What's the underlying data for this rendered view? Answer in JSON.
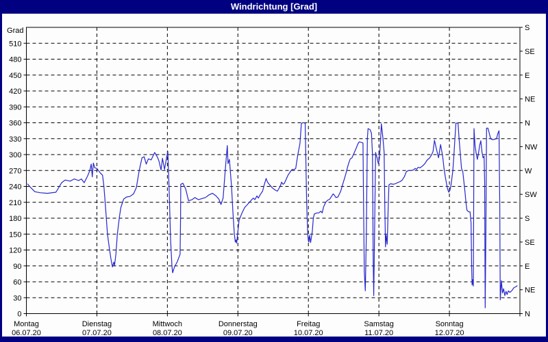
{
  "window": {
    "title": "Windrichtung [Grad]"
  },
  "colors": {
    "chrome": "#000080",
    "title_text": "#ffffff",
    "plot_background": "#fdfdfd",
    "grid": "#000000",
    "axis": "#000000",
    "line": "#2626cc",
    "text": "#000000"
  },
  "chart_data": {
    "type": "line",
    "title": "Windrichtung [Grad]",
    "ylabel": "Grad",
    "ylim": [
      0,
      540
    ],
    "y_tick_step": 30,
    "grid": "dashed-horizontal-every-30deg-and-vertical-every-day",
    "legend": "none",
    "right_axis": {
      "step": 45,
      "labels_bottom_to_top": [
        "N",
        "NE",
        "E",
        "SE",
        "S",
        "SW",
        "W",
        "NW",
        "N",
        "NE",
        "E",
        "SE",
        "S"
      ]
    },
    "x_days": [
      {
        "day": "Montag",
        "date": "06.07.20"
      },
      {
        "day": "Dienstag",
        "date": "07.07.20"
      },
      {
        "day": "Mittwoch",
        "date": "08.07.20"
      },
      {
        "day": "Donnerstag",
        "date": "09.07.20"
      },
      {
        "day": "Freitag",
        "date": "10.07.20"
      },
      {
        "day": "Samstag",
        "date": "11.07.20"
      },
      {
        "day": "Sonntag",
        "date": "12.07.20"
      }
    ],
    "series": [
      {
        "name": "Windrichtung",
        "unit": "Grad",
        "x_unit": "days-since-monday-00h",
        "points": [
          [
            0.015,
            245
          ],
          [
            0.06,
            238
          ],
          [
            0.12,
            230
          ],
          [
            0.2,
            228
          ],
          [
            0.3,
            227
          ],
          [
            0.42,
            229
          ],
          [
            0.5,
            247
          ],
          [
            0.55,
            252
          ],
          [
            0.62,
            250
          ],
          [
            0.68,
            254
          ],
          [
            0.74,
            251
          ],
          [
            0.78,
            254
          ],
          [
            0.82,
            247
          ],
          [
            0.87,
            260
          ],
          [
            0.9,
            270
          ],
          [
            0.92,
            282
          ],
          [
            0.935,
            258
          ],
          [
            0.95,
            284
          ],
          [
            0.97,
            275
          ],
          [
            1.0,
            274
          ],
          [
            1.05,
            265
          ],
          [
            1.08,
            261
          ],
          [
            1.1,
            240
          ],
          [
            1.12,
            205
          ],
          [
            1.15,
            150
          ],
          [
            1.18,
            120
          ],
          [
            1.2,
            103
          ],
          [
            1.22,
            88
          ],
          [
            1.24,
            97
          ],
          [
            1.25,
            91
          ],
          [
            1.27,
            112
          ],
          [
            1.29,
            150
          ],
          [
            1.32,
            183
          ],
          [
            1.34,
            200
          ],
          [
            1.38,
            216
          ],
          [
            1.42,
            220
          ],
          [
            1.47,
            221
          ],
          [
            1.52,
            226
          ],
          [
            1.56,
            238
          ],
          [
            1.6,
            270
          ],
          [
            1.64,
            294
          ],
          [
            1.67,
            296
          ],
          [
            1.7,
            282
          ],
          [
            1.73,
            292
          ],
          [
            1.77,
            290
          ],
          [
            1.82,
            304
          ],
          [
            1.86,
            295
          ],
          [
            1.88,
            288
          ],
          [
            1.91,
            271
          ],
          [
            1.93,
            293
          ],
          [
            1.96,
            272
          ],
          [
            1.99,
            295
          ],
          [
            2.006,
            306
          ],
          [
            2.026,
            230
          ],
          [
            2.045,
            140
          ],
          [
            2.065,
            90
          ],
          [
            2.074,
            77
          ],
          [
            2.1,
            88
          ],
          [
            2.14,
            98
          ],
          [
            2.18,
            112
          ],
          [
            2.187,
            180
          ],
          [
            2.19,
            244
          ],
          [
            2.22,
            246
          ],
          [
            2.26,
            235
          ],
          [
            2.3,
            213
          ],
          [
            2.35,
            215
          ],
          [
            2.39,
            219
          ],
          [
            2.44,
            215
          ],
          [
            2.49,
            217
          ],
          [
            2.54,
            219
          ],
          [
            2.59,
            224
          ],
          [
            2.64,
            227
          ],
          [
            2.69,
            222
          ],
          [
            2.73,
            216
          ],
          [
            2.76,
            206
          ],
          [
            2.79,
            218
          ],
          [
            2.82,
            270
          ],
          [
            2.85,
            317
          ],
          [
            2.86,
            283
          ],
          [
            2.88,
            291
          ],
          [
            2.91,
            240
          ],
          [
            2.93,
            190
          ],
          [
            2.95,
            150
          ],
          [
            2.963,
            135
          ],
          [
            2.973,
            139
          ],
          [
            2.983,
            133
          ],
          [
            3.017,
            176
          ],
          [
            3.056,
            189
          ],
          [
            3.095,
            200
          ],
          [
            3.143,
            207
          ],
          [
            3.19,
            214
          ],
          [
            3.22,
            218
          ],
          [
            3.24,
            215
          ],
          [
            3.27,
            222
          ],
          [
            3.29,
            218
          ],
          [
            3.32,
            225
          ],
          [
            3.35,
            231
          ],
          [
            3.38,
            246
          ],
          [
            3.4,
            255
          ],
          [
            3.42,
            248
          ],
          [
            3.45,
            243
          ],
          [
            3.49,
            237
          ],
          [
            3.53,
            233
          ],
          [
            3.56,
            231
          ],
          [
            3.6,
            240
          ],
          [
            3.62,
            248
          ],
          [
            3.64,
            244
          ],
          [
            3.66,
            246
          ],
          [
            3.71,
            261
          ],
          [
            3.75,
            269
          ],
          [
            3.77,
            272
          ],
          [
            3.8,
            272
          ],
          [
            3.82,
            274
          ],
          [
            3.85,
            300
          ],
          [
            3.88,
            321
          ],
          [
            3.9,
            358
          ],
          [
            3.915,
            360
          ],
          [
            3.94,
            360
          ],
          [
            3.954,
            359
          ],
          [
            3.963,
            300
          ],
          [
            3.973,
            225
          ],
          [
            3.981,
            184
          ],
          [
            3.991,
            150
          ],
          [
            4.0,
            137
          ],
          [
            4.007,
            135
          ],
          [
            4.017,
            148
          ],
          [
            4.031,
            134
          ],
          [
            4.055,
            155
          ],
          [
            4.07,
            180
          ],
          [
            4.084,
            188
          ],
          [
            4.118,
            190
          ],
          [
            4.147,
            190
          ],
          [
            4.177,
            193
          ],
          [
            4.196,
            190
          ],
          [
            4.215,
            201
          ],
          [
            4.245,
            210
          ],
          [
            4.274,
            214
          ],
          [
            4.303,
            216
          ],
          [
            4.327,
            221
          ],
          [
            4.351,
            226
          ],
          [
            4.371,
            223
          ],
          [
            4.39,
            219
          ],
          [
            4.419,
            220
          ],
          [
            4.458,
            231
          ],
          [
            4.487,
            244
          ],
          [
            4.517,
            257
          ],
          [
            4.536,
            266
          ],
          [
            4.555,
            276
          ],
          [
            4.575,
            285
          ],
          [
            4.594,
            292
          ],
          [
            4.618,
            294
          ],
          [
            4.652,
            304
          ],
          [
            4.681,
            313
          ],
          [
            4.701,
            320
          ],
          [
            4.72,
            324
          ],
          [
            4.749,
            323
          ],
          [
            4.774,
            322
          ],
          [
            4.783,
            200
          ],
          [
            4.793,
            80
          ],
          [
            4.807,
            43
          ],
          [
            4.822,
            150
          ],
          [
            4.836,
            330
          ],
          [
            4.846,
            349
          ],
          [
            4.875,
            347
          ],
          [
            4.895,
            340
          ],
          [
            4.909,
            300
          ],
          [
            4.919,
            100
          ],
          [
            4.927,
            34
          ],
          [
            4.938,
            150
          ],
          [
            4.953,
            304
          ],
          [
            4.972,
            295
          ],
          [
            4.992,
            283
          ],
          [
            5.006,
            292
          ],
          [
            5.021,
            320
          ],
          [
            5.035,
            358
          ],
          [
            5.05,
            340
          ],
          [
            5.064,
            321
          ],
          [
            5.074,
            304
          ],
          [
            5.084,
            200
          ],
          [
            5.094,
            126
          ],
          [
            5.104,
            148
          ],
          [
            5.118,
            131
          ],
          [
            5.132,
            200
          ],
          [
            5.142,
            243
          ],
          [
            5.166,
            245
          ],
          [
            5.205,
            244
          ],
          [
            5.234,
            245
          ],
          [
            5.263,
            247
          ],
          [
            5.302,
            249
          ],
          [
            5.331,
            252
          ],
          [
            5.36,
            258
          ],
          [
            5.39,
            268
          ],
          [
            5.419,
            270
          ],
          [
            5.458,
            270
          ],
          [
            5.487,
            271
          ],
          [
            5.516,
            274
          ],
          [
            5.535,
            272
          ],
          [
            5.555,
            276
          ],
          [
            5.584,
            275
          ],
          [
            5.622,
            279
          ],
          [
            5.652,
            283
          ],
          [
            5.681,
            289
          ],
          [
            5.72,
            294
          ],
          [
            5.749,
            300
          ],
          [
            5.768,
            306
          ],
          [
            5.788,
            327
          ],
          [
            5.817,
            310
          ],
          [
            5.846,
            294
          ],
          [
            5.875,
            319
          ],
          [
            5.904,
            297
          ],
          [
            5.923,
            275
          ],
          [
            5.943,
            257
          ],
          [
            5.972,
            236
          ],
          [
            5.991,
            229
          ],
          [
            6.006,
            232
          ],
          [
            6.025,
            244
          ],
          [
            6.049,
            270
          ],
          [
            6.064,
            300
          ],
          [
            6.078,
            330
          ],
          [
            6.093,
            359
          ],
          [
            6.122,
            360
          ],
          [
            6.137,
            330
          ],
          [
            6.156,
            300
          ],
          [
            6.171,
            274
          ],
          [
            6.19,
            268
          ],
          [
            6.205,
            249
          ],
          [
            6.22,
            231
          ],
          [
            6.234,
            210
          ],
          [
            6.249,
            195
          ],
          [
            6.273,
            192
          ],
          [
            6.293,
            192
          ],
          [
            6.307,
            171
          ],
          [
            6.315,
            90
          ],
          [
            6.322,
            54
          ],
          [
            6.331,
            64
          ],
          [
            6.339,
            52
          ],
          [
            6.344,
            200
          ],
          [
            6.349,
            349
          ],
          [
            6.364,
            317
          ],
          [
            6.38,
            302
          ],
          [
            6.397,
            291
          ],
          [
            6.414,
            304
          ],
          [
            6.429,
            317
          ],
          [
            6.445,
            326
          ],
          [
            6.463,
            304
          ],
          [
            6.477,
            294
          ],
          [
            6.492,
            297
          ],
          [
            6.5,
            250
          ],
          [
            6.507,
            11
          ],
          [
            6.517,
            150
          ],
          [
            6.527,
            350
          ],
          [
            6.546,
            350
          ],
          [
            6.566,
            340
          ],
          [
            6.585,
            330
          ],
          [
            6.614,
            328
          ],
          [
            6.643,
            329
          ],
          [
            6.668,
            330
          ],
          [
            6.687,
            340
          ],
          [
            6.704,
            345
          ],
          [
            6.714,
            200
          ],
          [
            6.721,
            26
          ],
          [
            6.737,
            62
          ],
          [
            6.753,
            39
          ],
          [
            6.769,
            47
          ],
          [
            6.786,
            34
          ],
          [
            6.803,
            42
          ],
          [
            6.818,
            36
          ],
          [
            6.837,
            43
          ],
          [
            6.857,
            40
          ],
          [
            6.883,
            43
          ],
          [
            6.915,
            49
          ],
          [
            6.947,
            51
          ],
          [
            6.964,
            53
          ]
        ]
      }
    ]
  }
}
